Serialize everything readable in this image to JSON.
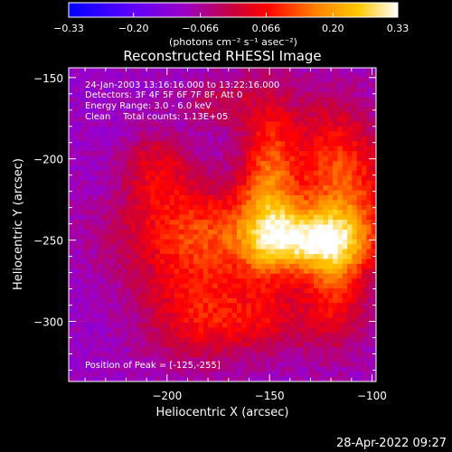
{
  "chart_data": {
    "type": "heatmap",
    "title": "Reconstructed RHESSI Image",
    "xlabel": "Heliocentric X (arcsec)",
    "ylabel": "Heliocentric Y (arcsec)",
    "xlim": [
      -248,
      -98
    ],
    "ylim": [
      -337,
      -144
    ],
    "x_ticks": [
      -200,
      -150,
      -100
    ],
    "y_ticks": [
      -150,
      -200,
      -250,
      -300
    ],
    "x_tick_labels": [
      "−200",
      "−150",
      "−100"
    ],
    "y_tick_labels": [
      "−150",
      "−200",
      "−250",
      "−300"
    ],
    "colorbar": {
      "range": [
        -0.33,
        0.33
      ],
      "ticks": [
        -0.33,
        -0.2,
        -0.066,
        0.066,
        0.2,
        0.33
      ],
      "tick_labels": [
        "−0.33",
        "−0.20",
        "−0.066",
        "0.066",
        "0.20",
        "0.33"
      ],
      "unit_label": "(photons cm⁻² s⁻¹ asec⁻²)",
      "colors": [
        "#0000ff",
        "#5a00ff",
        "#9b00c8",
        "#c8003c",
        "#ff0000",
        "#ff8000",
        "#ffc800",
        "#ffffff"
      ]
    },
    "annotations": {
      "time_range": "24-Jan-2003 13:16:16.000 to 13:22:16.000",
      "detectors": "Detectors: 3F 4F 5F 6F 7F 8F, Att 0",
      "energy_range": "Energy Range: 3.0 - 6.0 keV",
      "method": "Clean",
      "total_counts": "Total counts: 1.13E+05",
      "peak_position": "Position of Peak = [-125,-255]"
    },
    "peak": [
      -125,
      -255
    ],
    "components": [
      {
        "x": -130,
        "y": -250,
        "amp": 0.3,
        "sx": 20,
        "sy": 14
      },
      {
        "x": -150,
        "y": -215,
        "amp": 0.22,
        "sx": 10,
        "sy": 40
      },
      {
        "x": -185,
        "y": -245,
        "amp": 0.2,
        "sx": 28,
        "sy": 22
      },
      {
        "x": -120,
        "y": -200,
        "amp": 0.16,
        "sx": 14,
        "sy": 28
      },
      {
        "x": -118,
        "y": -275,
        "amp": 0.17,
        "sx": 11,
        "sy": 28
      },
      {
        "x": -185,
        "y": -295,
        "amp": 0.15,
        "sx": 20,
        "sy": 22
      },
      {
        "x": -205,
        "y": -205,
        "amp": 0.12,
        "sx": 12,
        "sy": 16
      },
      {
        "x": -105,
        "y": -225,
        "amp": 0.11,
        "sx": 14,
        "sy": 26
      },
      {
        "x": -150,
        "y": -300,
        "amp": 0.09,
        "sx": 20,
        "sy": 14
      },
      {
        "x": -175,
        "y": -165,
        "amp": 0.08,
        "sx": 12,
        "sy": 12
      }
    ],
    "background_level": -0.1
  },
  "footer": {
    "timestamp": "28-Apr-2022 09:27"
  }
}
